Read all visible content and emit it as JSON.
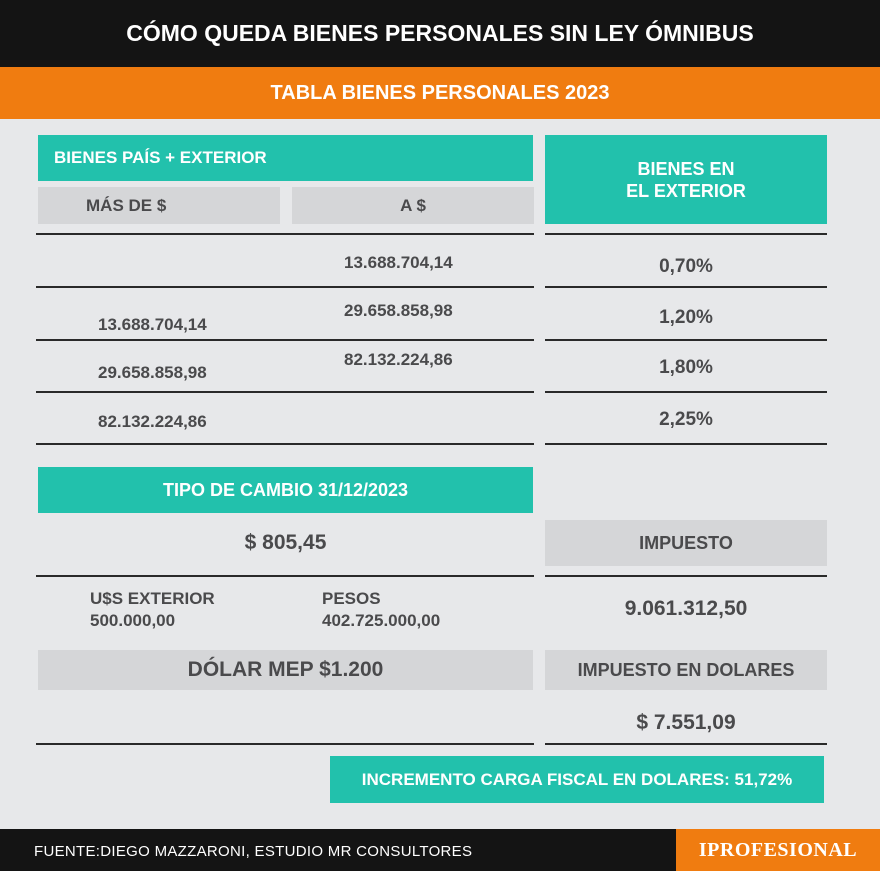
{
  "header": {
    "title": "CÓMO QUEDA BIENES PERSONALES SIN LEY ÓMNIBUS",
    "subtitle": "TABLA BIENES PERSONALES 2023"
  },
  "table": {
    "group_header": "BIENES PAÍS + EXTERIOR",
    "col_from": "MÁS DE $",
    "col_to": "A $",
    "col_rate": "BIENES EN EL EXTERIOR",
    "rows": [
      {
        "from": "",
        "to": "13.688.704,14",
        "rate": "0,70%"
      },
      {
        "from": "13.688.704,14",
        "to": "29.658.858,98",
        "rate": "1,20%"
      },
      {
        "from": "29.658.858,98",
        "to": "82.132.224,86",
        "rate": "1,80%"
      },
      {
        "from": "82.132.224,86",
        "to": "",
        "rate": "2,25%"
      }
    ]
  },
  "exchange": {
    "title": "TIPO DE CAMBIO 31/12/2023",
    "value": "$ 805,45",
    "usd_label": "U$S EXTERIOR",
    "usd_value": "500.000,00",
    "pesos_label": "PESOS",
    "pesos_value": "402.725.000,00",
    "mep": "DÓLAR MEP $1.200"
  },
  "tax": {
    "label": "IMPUESTO",
    "value": "9.061.312,50",
    "usd_label": "IMPUESTO EN DOLARES",
    "usd_value": "$ 7.551,09"
  },
  "increment": "INCREMENTO CARGA FISCAL EN DOLARES: 51,72%",
  "footer": {
    "source": "FUENTE:DIEGO MAZZARONI, ESTUDIO MR CONSULTORES",
    "logo": "IPROFESIONAL"
  },
  "colors": {
    "teal": "#22c1ac",
    "orange": "#f07c10",
    "black": "#141414",
    "grey": "#d5d6d8"
  }
}
